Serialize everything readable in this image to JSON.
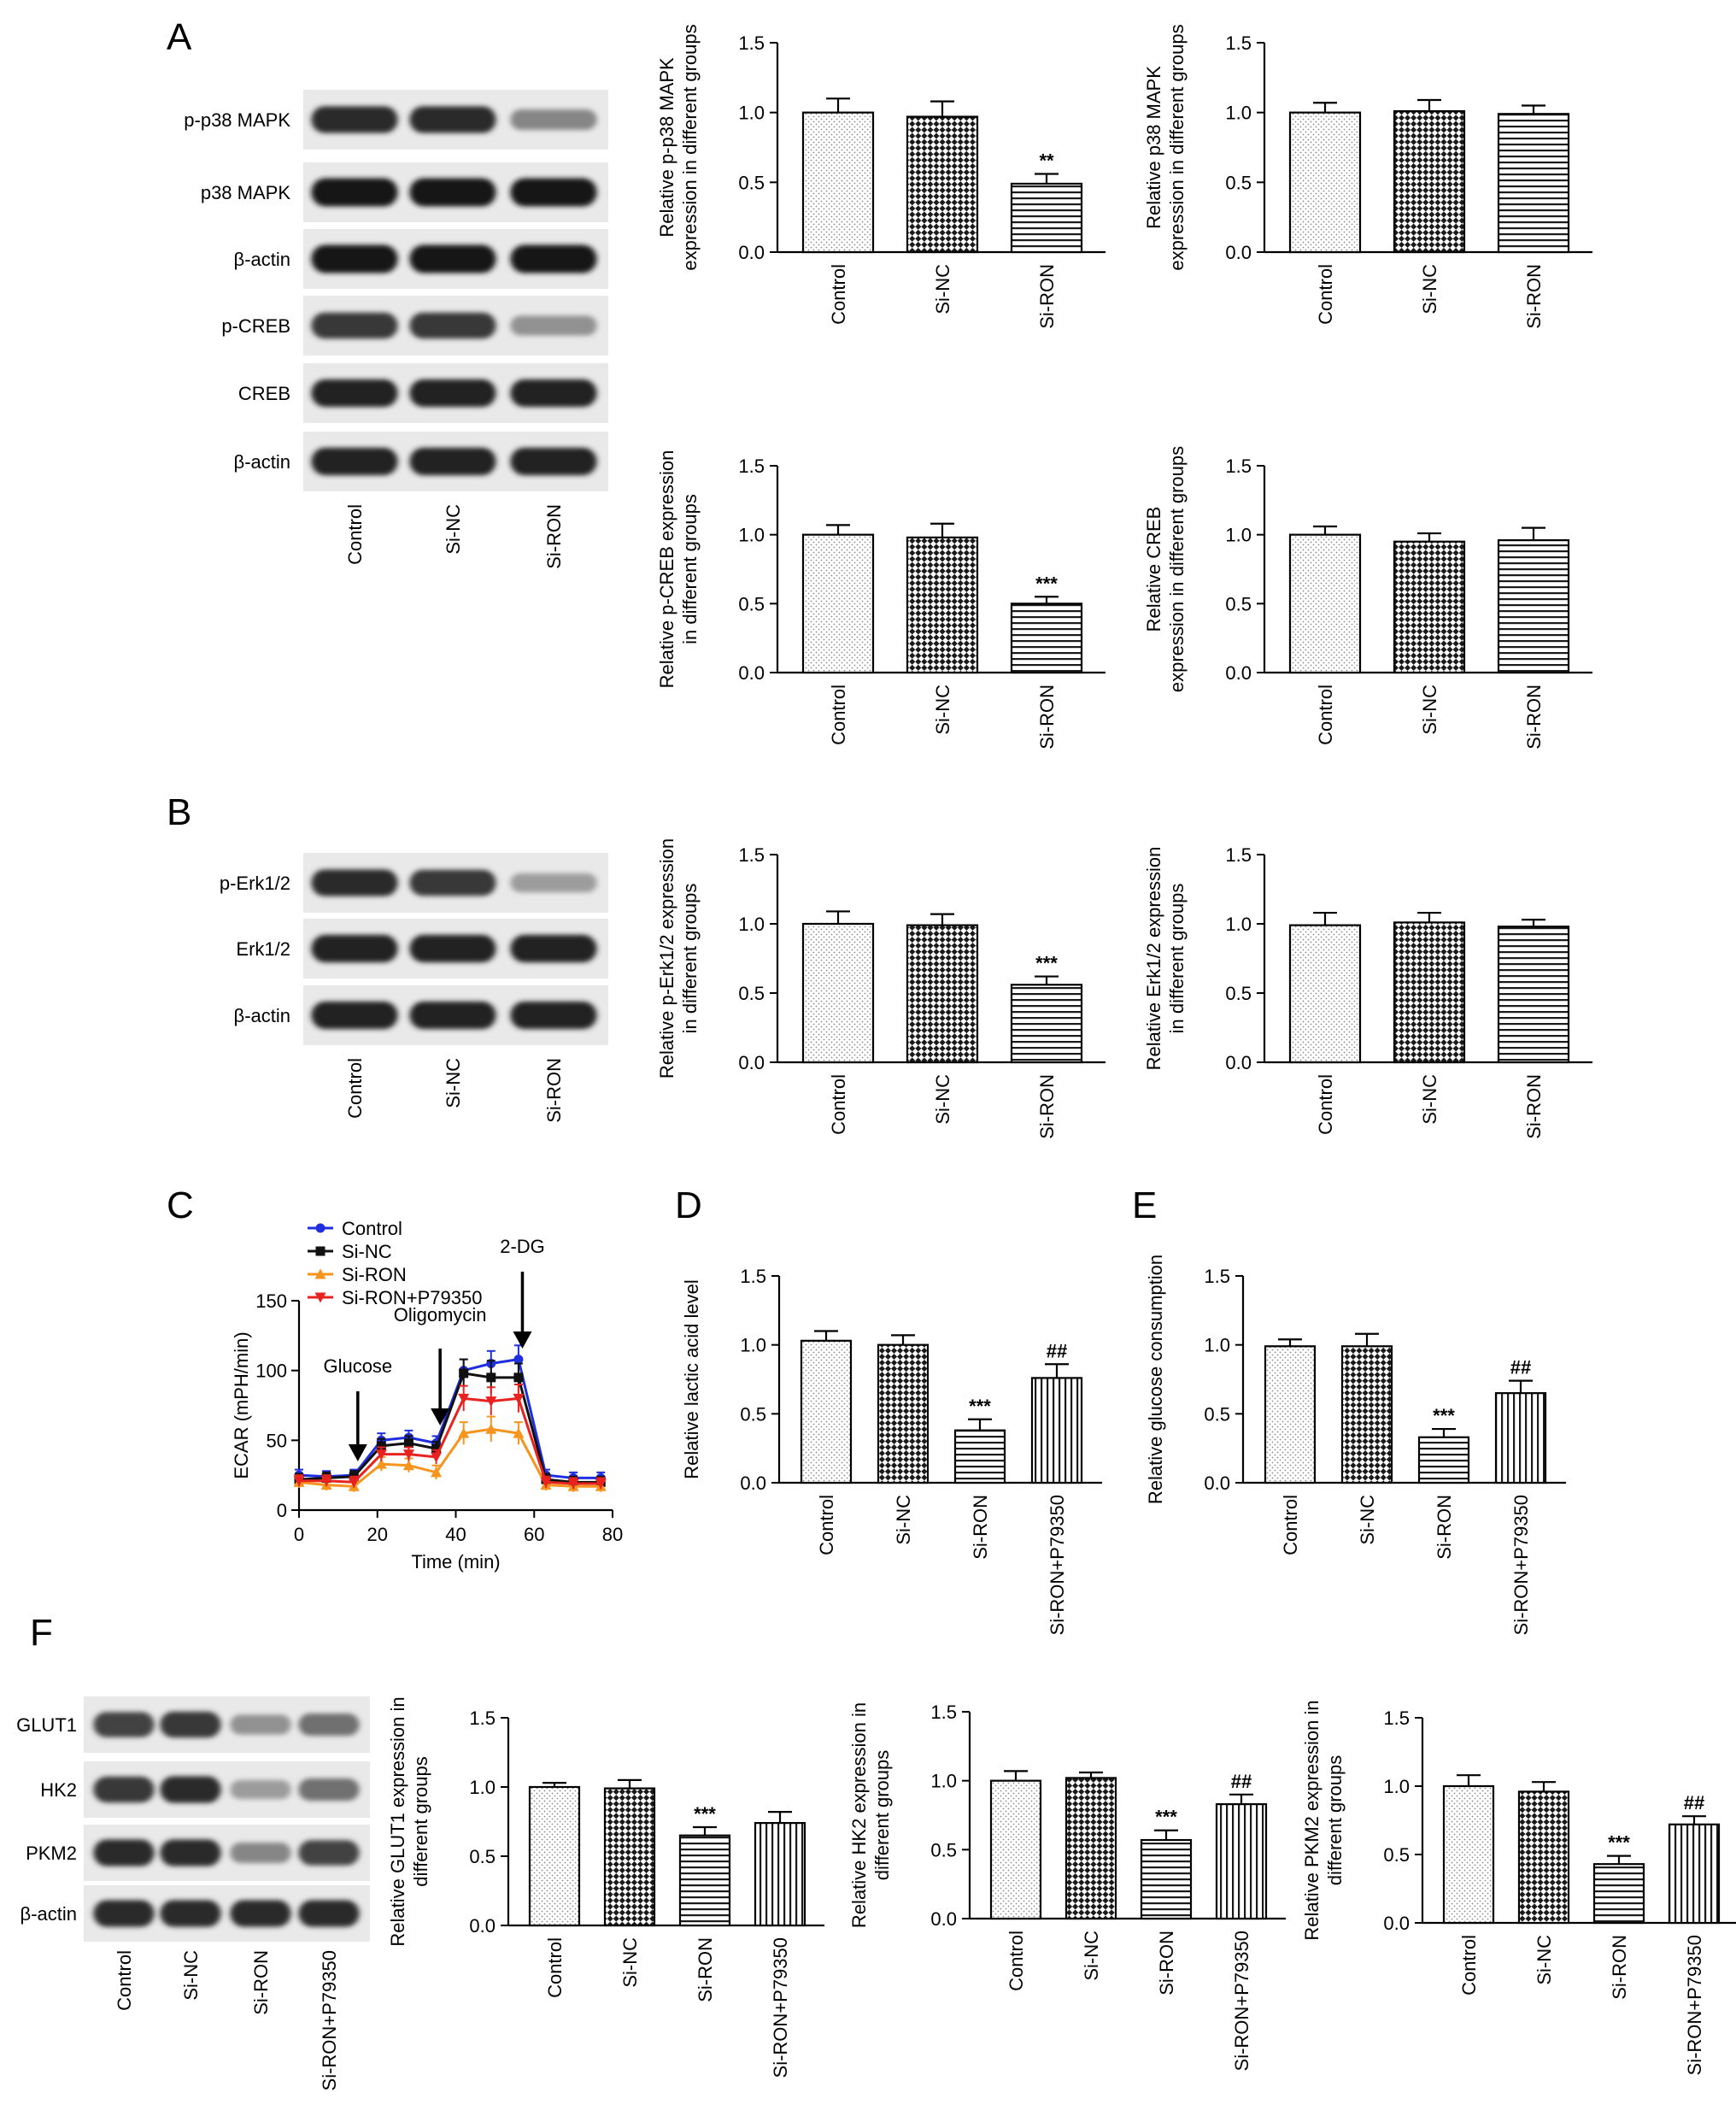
{
  "panels": {
    "A": {
      "letter": "A"
    },
    "B": {
      "letter": "B"
    },
    "C": {
      "letter": "C"
    },
    "D": {
      "letter": "D"
    },
    "E": {
      "letter": "E"
    },
    "F": {
      "letter": "F"
    }
  },
  "blots": [
    {
      "id": "A",
      "lanes": [
        "Control",
        "Si-NC",
        "Si-RON"
      ],
      "bands": [
        {
          "label": "p-p38 MAPK",
          "int": [
            0.85,
            0.85,
            0.45
          ]
        },
        {
          "label": "p38 MAPK",
          "int": [
            0.95,
            0.95,
            0.95
          ]
        },
        {
          "label": "β-actin",
          "int": [
            0.95,
            0.95,
            0.95
          ]
        },
        {
          "label": "p-CREB",
          "int": [
            0.8,
            0.8,
            0.4
          ]
        },
        {
          "label": "CREB",
          "int": [
            0.9,
            0.9,
            0.9
          ]
        },
        {
          "label": "β-actin",
          "int": [
            0.9,
            0.9,
            0.9
          ]
        }
      ]
    },
    {
      "id": "B",
      "lanes": [
        "Control",
        "Si-NC",
        "Si-RON"
      ],
      "bands": [
        {
          "label": "p-Erk1/2",
          "int": [
            0.85,
            0.8,
            0.35
          ]
        },
        {
          "label": "Erk1/2",
          "int": [
            0.9,
            0.9,
            0.9
          ]
        },
        {
          "label": "β-actin",
          "int": [
            0.9,
            0.9,
            0.9
          ]
        }
      ]
    },
    {
      "id": "F",
      "lanes": [
        "Control",
        "Si-NC",
        "Si-RON",
        "Si-RON+P79350"
      ],
      "bands": [
        {
          "label": "GLUT1",
          "int": [
            0.75,
            0.8,
            0.4,
            0.55
          ]
        },
        {
          "label": "HK2",
          "int": [
            0.8,
            0.85,
            0.35,
            0.55
          ]
        },
        {
          "label": "PKM2",
          "int": [
            0.85,
            0.85,
            0.45,
            0.75
          ]
        },
        {
          "label": "β-actin",
          "int": [
            0.85,
            0.85,
            0.85,
            0.85
          ]
        }
      ]
    }
  ],
  "chart_data": [
    {
      "type": "bar",
      "panel": "A",
      "categories": [
        "Control",
        "Si-NC",
        "Si-RON"
      ],
      "values": [
        1.0,
        0.97,
        0.49
      ],
      "errors": [
        0.1,
        0.11,
        0.07
      ],
      "annotations": [
        "",
        "",
        "**"
      ],
      "ylabel": [
        "Relative p-p38 MAPK",
        "expression in different groups"
      ],
      "ylim": [
        0,
        1.5
      ],
      "yticks": [
        "0.0",
        "0.5",
        "1.0",
        "1.5"
      ]
    },
    {
      "type": "bar",
      "panel": "A",
      "categories": [
        "Control",
        "Si-NC",
        "Si-RON"
      ],
      "values": [
        1.0,
        1.01,
        0.99
      ],
      "errors": [
        0.07,
        0.08,
        0.06
      ],
      "annotations": [
        "",
        "",
        ""
      ],
      "ylabel": [
        "Relative p38 MAPK",
        "expression in different groups"
      ],
      "ylim": [
        0,
        1.5
      ],
      "yticks": [
        "0.0",
        "0.5",
        "1.0",
        "1.5"
      ]
    },
    {
      "type": "bar",
      "panel": "A",
      "categories": [
        "Control",
        "Si-NC",
        "Si-RON"
      ],
      "values": [
        1.0,
        0.98,
        0.5
      ],
      "errors": [
        0.07,
        0.1,
        0.05
      ],
      "annotations": [
        "",
        "",
        "***"
      ],
      "ylabel": [
        "Relative p-CREB expression",
        "in different groups"
      ],
      "ylim": [
        0,
        1.5
      ],
      "yticks": [
        "0.0",
        "0.5",
        "1.0",
        "1.5"
      ]
    },
    {
      "type": "bar",
      "panel": "A",
      "categories": [
        "Control",
        "Si-NC",
        "Si-RON"
      ],
      "values": [
        1.0,
        0.95,
        0.96
      ],
      "errors": [
        0.06,
        0.06,
        0.09
      ],
      "annotations": [
        "",
        "",
        ""
      ],
      "ylabel": [
        "Relative CREB",
        "expression in different groups"
      ],
      "ylim": [
        0,
        1.5
      ],
      "yticks": [
        "0.0",
        "0.5",
        "1.0",
        "1.5"
      ]
    },
    {
      "type": "bar",
      "panel": "B",
      "categories": [
        "Control",
        "Si-NC",
        "Si-RON"
      ],
      "values": [
        1.0,
        0.99,
        0.56
      ],
      "errors": [
        0.09,
        0.08,
        0.06
      ],
      "annotations": [
        "",
        "",
        "***"
      ],
      "ylabel": [
        "Relative p-Erk1/2 expression",
        "in different groups"
      ],
      "ylim": [
        0,
        1.5
      ],
      "yticks": [
        "0.0",
        "0.5",
        "1.0",
        "1.5"
      ]
    },
    {
      "type": "bar",
      "panel": "B",
      "categories": [
        "Control",
        "Si-NC",
        "Si-RON"
      ],
      "values": [
        0.99,
        1.01,
        0.98
      ],
      "errors": [
        0.09,
        0.07,
        0.05
      ],
      "annotations": [
        "",
        "",
        ""
      ],
      "ylabel": [
        "Relative Erk1/2 expression",
        "in different groups"
      ],
      "ylim": [
        0,
        1.5
      ],
      "yticks": [
        "0.0",
        "0.5",
        "1.0",
        "1.5"
      ]
    },
    {
      "type": "line",
      "panel": "C",
      "x": [
        0,
        7,
        14,
        21,
        28,
        35,
        42,
        49,
        56,
        63,
        70,
        77
      ],
      "series": [
        {
          "name": "Control",
          "color": "#1f2fe0",
          "marker": "circle",
          "values": [
            25,
            24,
            25,
            50,
            52,
            48,
            100,
            105,
            108,
            25,
            23,
            23
          ],
          "errors": [
            4,
            4,
            4,
            5,
            5,
            5,
            8,
            9,
            10,
            4,
            4,
            4
          ]
        },
        {
          "name": "Si-NC",
          "color": "#111111",
          "marker": "square",
          "values": [
            22,
            23,
            24,
            46,
            48,
            44,
            98,
            95,
            95,
            22,
            20,
            20
          ],
          "errors": [
            4,
            4,
            4,
            5,
            5,
            5,
            10,
            12,
            10,
            4,
            4,
            4
          ]
        },
        {
          "name": "Si-RON",
          "color": "#f7941d",
          "marker": "triangle-up",
          "values": [
            20,
            18,
            17,
            33,
            32,
            27,
            55,
            58,
            55,
            18,
            17,
            17
          ],
          "errors": [
            4,
            4,
            4,
            5,
            5,
            5,
            8,
            9,
            8,
            4,
            4,
            4
          ]
        },
        {
          "name": "Si-RON+P79350",
          "color": "#e8231f",
          "marker": "triangle-down",
          "values": [
            21,
            21,
            20,
            40,
            40,
            38,
            80,
            78,
            80,
            20,
            19,
            19
          ],
          "errors": [
            4,
            4,
            4,
            5,
            5,
            5,
            9,
            10,
            10,
            4,
            4,
            4
          ]
        }
      ],
      "ylabel": "ECAR (mPH/min)",
      "xlabel": "Time (min)",
      "ylim": [
        0,
        150
      ],
      "xlim": [
        0,
        80
      ],
      "yticks": [
        "0",
        "50",
        "100",
        "150"
      ],
      "xticks": [
        "0",
        "20",
        "40",
        "60",
        "80"
      ],
      "arrows": [
        {
          "label": "Glucose",
          "x": 15
        },
        {
          "label": "Oligomycin",
          "x": 36
        },
        {
          "label": "2-DG",
          "x": 57
        }
      ]
    },
    {
      "type": "bar",
      "panel": "D",
      "categories": [
        "Control",
        "Si-NC",
        "Si-RON",
        "Si-RON+P79350"
      ],
      "values": [
        1.03,
        1.0,
        0.38,
        0.76
      ],
      "errors": [
        0.07,
        0.07,
        0.08,
        0.1
      ],
      "annotations": [
        "",
        "",
        "***",
        "##"
      ],
      "ylabel": [
        "Relative lactic acid level"
      ],
      "ylim": [
        0,
        1.5
      ],
      "yticks": [
        "0.0",
        "0.5",
        "1.0",
        "1.5"
      ]
    },
    {
      "type": "bar",
      "panel": "E",
      "categories": [
        "Control",
        "Si-NC",
        "Si-RON",
        "Si-RON+P79350"
      ],
      "values": [
        0.99,
        0.99,
        0.33,
        0.65
      ],
      "errors": [
        0.05,
        0.09,
        0.06,
        0.09
      ],
      "annotations": [
        "",
        "",
        "***",
        "##"
      ],
      "ylabel": [
        "Relative glucose consumption"
      ],
      "ylim": [
        0,
        1.5
      ],
      "yticks": [
        "0.0",
        "0.5",
        "1.0",
        "1.5"
      ]
    },
    {
      "type": "bar",
      "panel": "F",
      "categories": [
        "Control",
        "Si-NC",
        "Si-RON",
        "Si-RON+P79350"
      ],
      "values": [
        1.0,
        0.99,
        0.65,
        0.74
      ],
      "errors": [
        0.03,
        0.06,
        0.06,
        0.08
      ],
      "annotations": [
        "",
        "",
        "***",
        ""
      ],
      "ylabel": [
        "Relative GLUT1 expression in",
        "different groups"
      ],
      "ylim": [
        0,
        1.5
      ],
      "yticks": [
        "0.0",
        "0.5",
        "1.0",
        "1.5"
      ]
    },
    {
      "type": "bar",
      "panel": "F",
      "categories": [
        "Control",
        "Si-NC",
        "Si-RON",
        "Si-RON+P79350"
      ],
      "values": [
        1.0,
        1.02,
        0.57,
        0.83
      ],
      "errors": [
        0.07,
        0.04,
        0.07,
        0.07
      ],
      "annotations": [
        "",
        "",
        "***",
        "##"
      ],
      "ylabel": [
        "Relative HK2 expression in",
        "different groups"
      ],
      "ylim": [
        0,
        1.5
      ],
      "yticks": [
        "0.0",
        "0.5",
        "1.0",
        "1.5"
      ]
    },
    {
      "type": "bar",
      "panel": "F",
      "categories": [
        "Control",
        "Si-NC",
        "Si-RON",
        "Si-RON+P79350"
      ],
      "values": [
        1.0,
        0.96,
        0.43,
        0.72
      ],
      "errors": [
        0.08,
        0.07,
        0.06,
        0.06
      ],
      "annotations": [
        "",
        "",
        "***",
        "##"
      ],
      "ylabel": [
        "Relative PKM2 expression in",
        "different groups"
      ],
      "ylim": [
        0,
        1.5
      ],
      "yticks": [
        "0.0",
        "0.5",
        "1.0",
        "1.5"
      ]
    }
  ]
}
